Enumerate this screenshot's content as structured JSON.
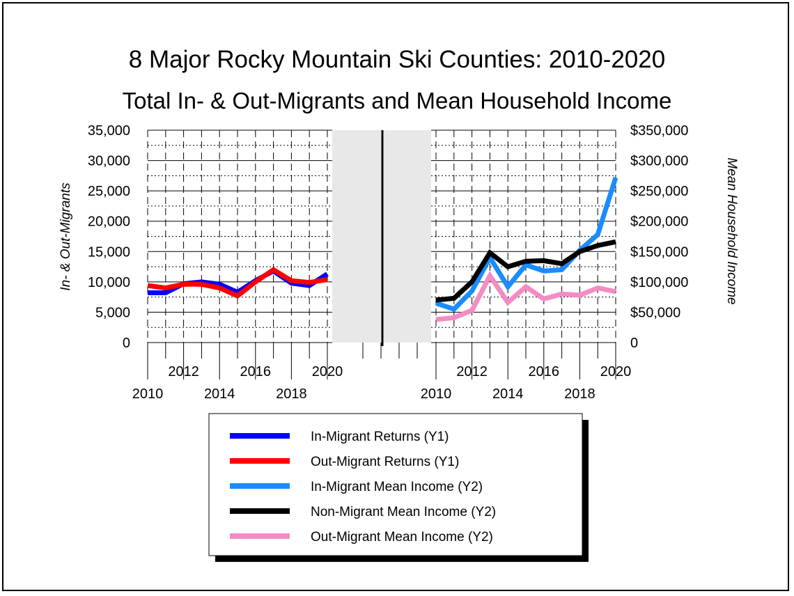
{
  "chart_data": {
    "type": "line",
    "title": "8 Major Rocky Mountain Ski Counties: 2010-2020",
    "subtitle": "Total In- & Out-Migrants and Mean Household Income",
    "y1label": "In- & Out-Migrants",
    "y2label": "Mean Household Income",
    "y1_ticks": [
      "35,000",
      "30,000",
      "25,000",
      "20,000",
      "15,000",
      "10,000",
      "5,000",
      "0"
    ],
    "y2_ticks": [
      "$350,000",
      "$300,000",
      "$250,000",
      "$200,000",
      "$150,000",
      "$100,000",
      "$50,000",
      "0"
    ],
    "ylim": [
      0,
      35000
    ],
    "y2lim": [
      0,
      350000
    ],
    "x": [
      2010,
      2011,
      2012,
      2013,
      2014,
      2015,
      2016,
      2017,
      2018,
      2019,
      2020
    ],
    "x_tick_labels": [
      "2010",
      "2012",
      "2014",
      "2016",
      "2018",
      "2020"
    ],
    "grid": true,
    "legend_position": "bottom",
    "panels": [
      {
        "name": "left",
        "series": [
          {
            "name": "In-Migrant Returns (Y1)",
            "axis": "y1",
            "color": "#0000ff",
            "values": [
              8200,
              8200,
              9700,
              10000,
              9600,
              8300,
              10200,
              11800,
              9800,
              9400,
              11300
            ]
          },
          {
            "name": "Out-Migrant Returns (Y1)",
            "axis": "y1",
            "color": "#ff0000",
            "values": [
              9400,
              9000,
              9600,
              9600,
              9000,
              7700,
              10000,
              12000,
              10200,
              9900,
              10400
            ]
          }
        ]
      },
      {
        "name": "right",
        "series": [
          {
            "name": "In-Migrant Mean Income (Y2)",
            "axis": "y2",
            "color": "#1a8cff",
            "values": [
              65000,
              55000,
              85000,
              140000,
              92000,
              128000,
              118000,
              120000,
              152000,
              178000,
              272000
            ]
          },
          {
            "name": "Non-Migrant Mean Income (Y2)",
            "axis": "y2",
            "color": "#000000",
            "values": [
              70000,
              73000,
              100000,
              148000,
              125000,
              134000,
              135000,
              130000,
              150000,
              160000,
              166000
            ]
          },
          {
            "name": "Out-Migrant Mean Income (Y2)",
            "axis": "y2",
            "color": "#f48cc4",
            "values": [
              38000,
              41000,
              53000,
              110000,
              66000,
              92000,
              72000,
              80000,
              78000,
              90000,
              84000
            ]
          }
        ]
      }
    ]
  },
  "legend": [
    {
      "label": "In-Migrant Returns (Y1)",
      "color": "#0000ff"
    },
    {
      "label": "Out-Migrant Returns (Y1)",
      "color": "#ff0000"
    },
    {
      "label": "In-Migrant Mean Income (Y2)",
      "color": "#1a8cff"
    },
    {
      "label": "Non-Migrant Mean Income (Y2)",
      "color": "#000000"
    },
    {
      "label": "Out-Migrant Mean Income (Y2)",
      "color": "#f48cc4"
    }
  ]
}
